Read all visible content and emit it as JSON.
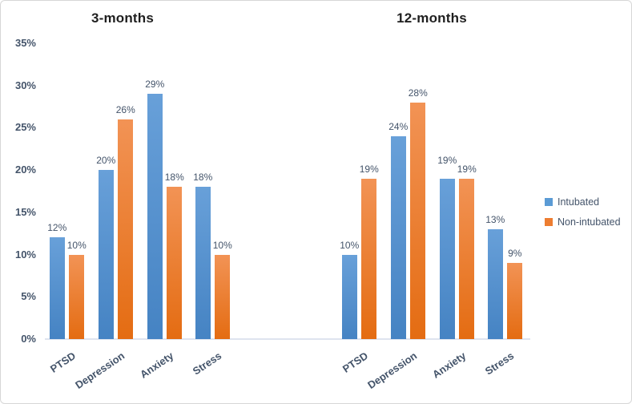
{
  "chart_data": {
    "type": "bar",
    "unit": "%",
    "grid": false,
    "y_axis": {
      "min": 0,
      "max": 35,
      "tick_step": 5,
      "tick_labels": [
        "0%",
        "5%",
        "10%",
        "15%",
        "20%",
        "25%",
        "30%",
        "35%"
      ]
    },
    "legend": {
      "position": "right",
      "items": [
        {
          "label": "Intubated",
          "color": "#5B9BD5"
        },
        {
          "label": "Non-intubated",
          "color": "#ED7D31"
        }
      ]
    },
    "panels": [
      {
        "title": "3-months",
        "categories": [
          "PTSD",
          "Depression",
          "Anxiety",
          "Stress"
        ],
        "series": [
          {
            "name": "Intubated",
            "values": [
              12,
              20,
              29,
              18
            ],
            "labels": [
              "12%",
              "20%",
              "29%",
              "18%"
            ]
          },
          {
            "name": "Non-intubated",
            "values": [
              10,
              26,
              18,
              10
            ],
            "labels": [
              "10%",
              "26%",
              "18%",
              "10%"
            ]
          }
        ]
      },
      {
        "title": "12-months",
        "categories": [
          "PTSD",
          "Depression",
          "Anxiety",
          "Stress"
        ],
        "series": [
          {
            "name": "Intubated",
            "values": [
              10,
              24,
              19,
              13
            ],
            "labels": [
              "10%",
              "24%",
              "19%",
              "13%"
            ]
          },
          {
            "name": "Non-intubated",
            "values": [
              19,
              28,
              19,
              9
            ],
            "labels": [
              "19%",
              "28%",
              "19%",
              "9%"
            ]
          }
        ]
      }
    ]
  },
  "colors": {
    "intubated": "#5B9BD5",
    "intubated_gradient_top": "#68A0D9",
    "intubated_gradient_bottom": "#4583C3",
    "non_intubated": "#ED7D31",
    "non_intubated_gradient_top": "#F29355",
    "non_intubated_gradient_bottom": "#E46C12",
    "axis_line": "#DEE4EF",
    "axis_text": "#44546A",
    "title_text": "#1F1F1F",
    "frame_border": "#D7D7D7"
  }
}
